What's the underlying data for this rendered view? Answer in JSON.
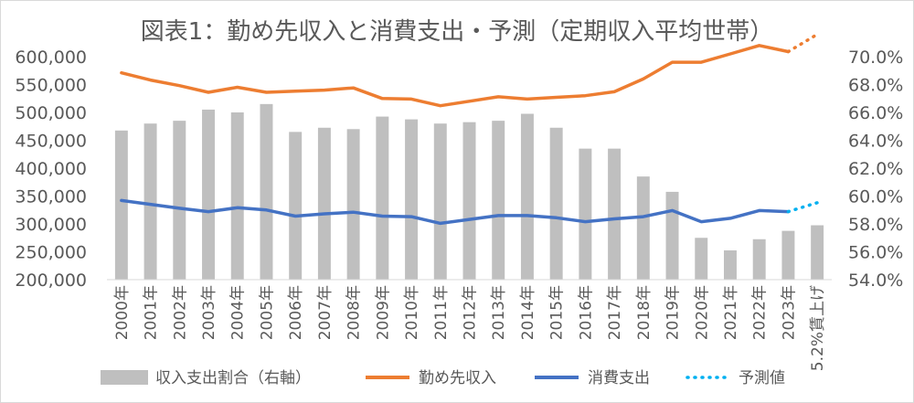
{
  "chart_data": {
    "type": "bar",
    "title": "図表1：勤め先収入と消費支出・予測（定期収入平均世帯）",
    "categories": [
      "2000年",
      "2001年",
      "2002年",
      "2003年",
      "2004年",
      "2005年",
      "2006年",
      "2007年",
      "2008年",
      "2009年",
      "2010年",
      "2011年",
      "2012年",
      "2013年",
      "2014年",
      "2015年",
      "2016年",
      "2017年",
      "2018年",
      "2019年",
      "2020年",
      "2021年",
      "2022年",
      "2023年",
      "5.2%賃上げ"
    ],
    "y_left": {
      "min": 200000,
      "max": 600000,
      "step": 50000,
      "tick_labels": [
        "200,000",
        "250,000",
        "300,000",
        "350,000",
        "400,000",
        "450,000",
        "500,000",
        "550,000",
        "600,000"
      ]
    },
    "y_right": {
      "min": 54,
      "max": 70,
      "step": 2,
      "tick_labels": [
        "54.0%",
        "56.0%",
        "58.0%",
        "60.0%",
        "62.0%",
        "64.0%",
        "66.0%",
        "68.0%",
        "70.0%"
      ]
    },
    "grid": false,
    "legend_position": "bottom",
    "series": [
      {
        "name": "収入支出割合（右軸）",
        "kind": "bar",
        "axis": "right",
        "color": "#bfbfbf",
        "values": [
          64.7,
          65.2,
          65.4,
          66.2,
          66.0,
          66.6,
          64.6,
          64.9,
          64.8,
          65.7,
          65.5,
          65.2,
          65.3,
          65.4,
          65.9,
          64.9,
          63.4,
          63.4,
          61.4,
          60.3,
          57.0,
          56.1,
          56.9,
          57.5,
          57.9
        ]
      },
      {
        "name": "勤め先収入",
        "kind": "line",
        "axis": "left",
        "color": "#ed7d31",
        "values": [
          571000,
          558000,
          548000,
          536000,
          545000,
          536000,
          538000,
          540000,
          544000,
          525000,
          524000,
          512000,
          520000,
          528000,
          524000,
          527000,
          530000,
          537000,
          560000,
          590000,
          590000,
          605000,
          620000,
          609000,
          null
        ]
      },
      {
        "name": "消費支出",
        "kind": "line",
        "axis": "left",
        "color": "#4472c4",
        "values": [
          342000,
          335000,
          328000,
          322000,
          329000,
          325000,
          314000,
          318000,
          321000,
          314000,
          313000,
          301000,
          308000,
          315000,
          315000,
          311000,
          304000,
          309000,
          313000,
          324000,
          304000,
          310000,
          324000,
          322000,
          null
        ]
      },
      {
        "name": "予測値",
        "kind": "dotted",
        "segments": [
          {
            "color": "#ed7d31",
            "x": [
              "2023年",
              "5.2%賃上げ"
            ],
            "values": [
              609000,
              640000
            ]
          },
          {
            "color": "#00b0f0",
            "x": [
              "2023年",
              "5.2%賃上げ"
            ],
            "values": [
              322000,
              338000
            ]
          }
        ]
      }
    ]
  }
}
